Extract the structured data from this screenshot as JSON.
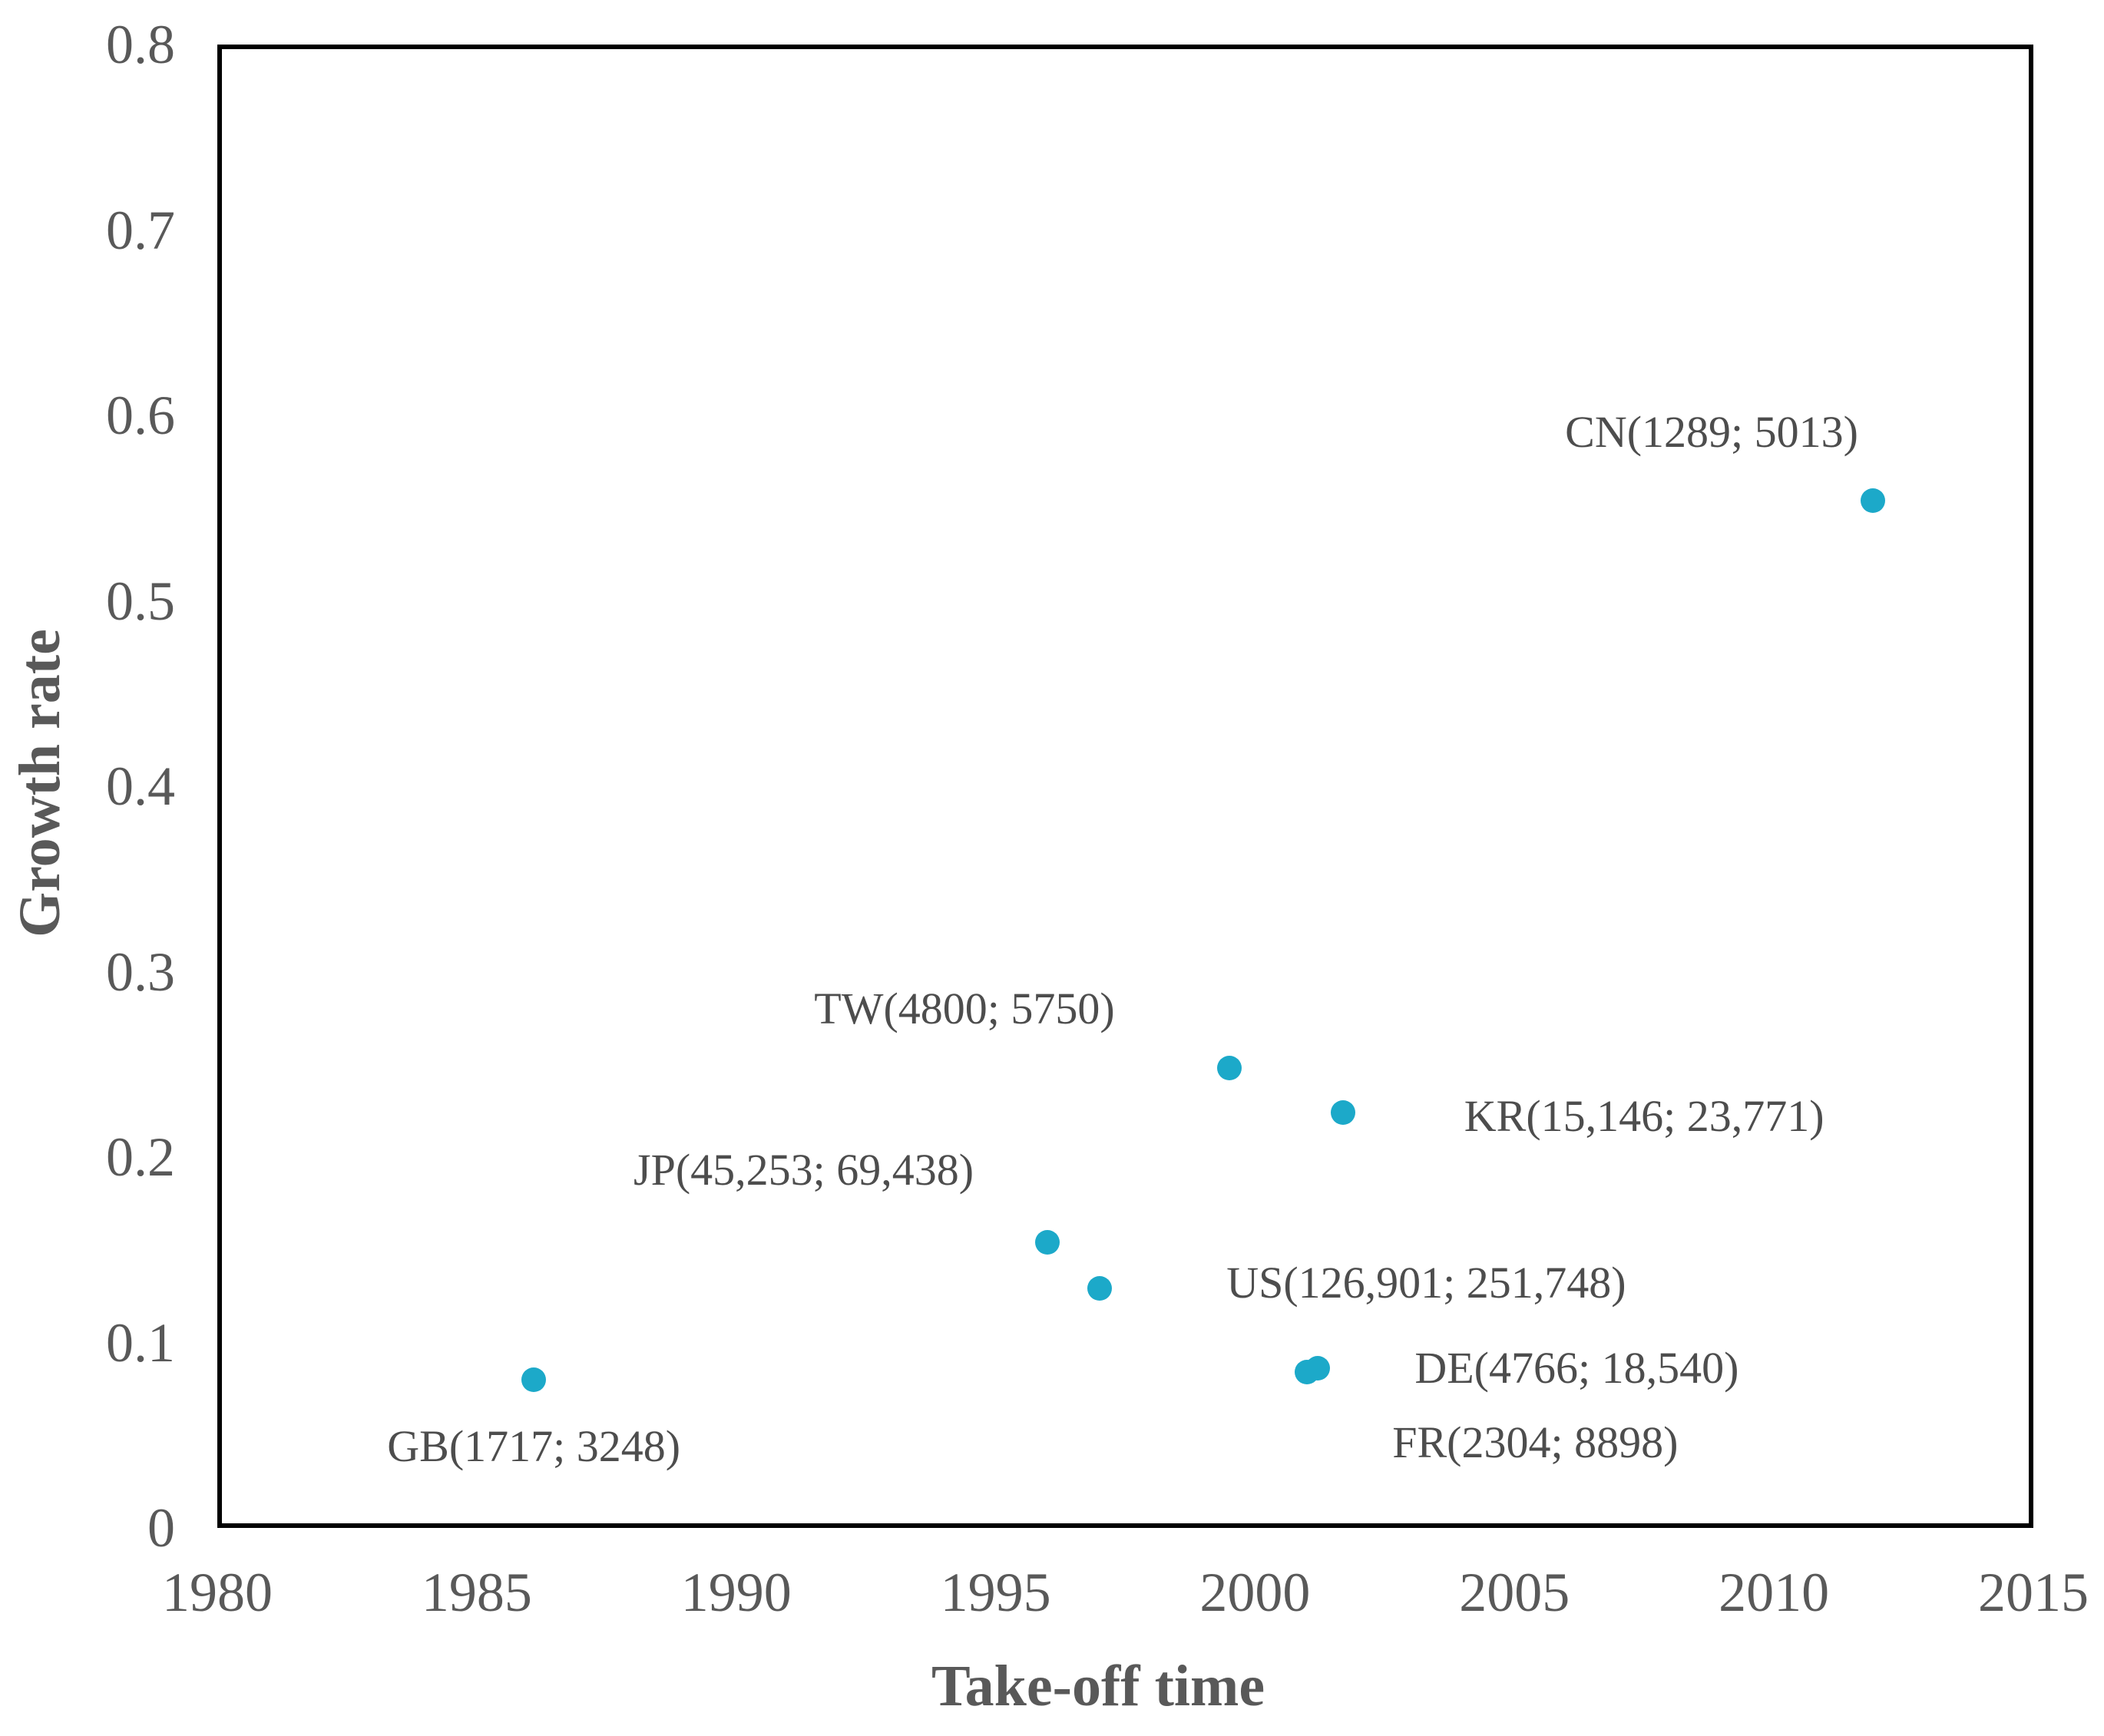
{
  "chart_data": {
    "type": "scatter",
    "title": "",
    "xlabel": "Take-off time",
    "ylabel": "Growth rate",
    "xlim": [
      1980,
      2015
    ],
    "ylim": [
      0,
      0.8
    ],
    "x_ticks": [
      1980,
      1985,
      1990,
      1995,
      2000,
      2005,
      2010,
      2015
    ],
    "y_ticks": [
      0,
      0.1,
      0.2,
      0.3,
      0.4,
      0.5,
      0.6,
      0.7,
      0.8
    ],
    "y_tick_labels": [
      "0",
      "0.1",
      "0.2",
      "0.3",
      "0.4",
      "0.5",
      "0.6",
      "0.7",
      "0.8"
    ],
    "grid": false,
    "legend": false,
    "marker_color": "#1CA9C9",
    "points": [
      {
        "code": "GB",
        "label": "GB(1717; 3248)",
        "x": 1986.1,
        "y": 0.08,
        "label_x": 1986.1,
        "label_y": 0.044
      },
      {
        "code": "JP",
        "label": "JP(45,253; 69,438)",
        "x": 1996.0,
        "y": 0.154,
        "label_x": 1991.3,
        "label_y": 0.193
      },
      {
        "code": "US",
        "label": "US(126,901; 251,748)",
        "x": 1997.0,
        "y": 0.129,
        "label_x": 2003.3,
        "label_y": 0.132
      },
      {
        "code": "TW",
        "label": "TW(4800; 5750)",
        "x": 1999.5,
        "y": 0.248,
        "label_x": 1994.4,
        "label_y": 0.28
      },
      {
        "code": "KR",
        "label": "KR(15,146; 23,771)",
        "x": 2001.7,
        "y": 0.224,
        "label_x": 2007.5,
        "label_y": 0.222
      },
      {
        "code": "FR",
        "label": "FR(2304; 8898)",
        "x": 2001.0,
        "y": 0.084,
        "label_x": 2005.4,
        "label_y": 0.046
      },
      {
        "code": "DE",
        "label": "DE(4766; 18,540)",
        "x": 2001.2,
        "y": 0.086,
        "label_x": 2006.2,
        "label_y": 0.086
      },
      {
        "code": "CN",
        "label": "CN(1289; 5013)",
        "x": 2011.9,
        "y": 0.554,
        "label_x": 2008.8,
        "label_y": 0.591
      }
    ]
  },
  "axes": {
    "x_title": "Take-off time",
    "y_title": "Growth rate"
  },
  "colors": {
    "marker": "#1CA9C9",
    "tick_text": "#595959",
    "label_text": "#4D4D4D",
    "axis_border": "#000000"
  }
}
